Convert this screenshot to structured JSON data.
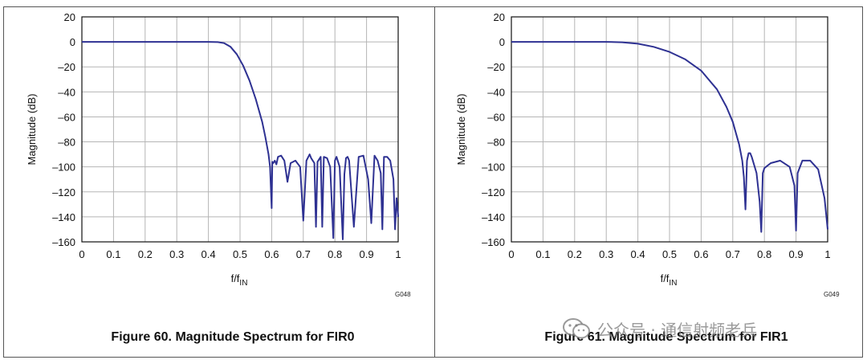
{
  "chart_data": [
    {
      "type": "line",
      "xlabel": "f/f",
      "xlabel_sub": "IN",
      "ylabel": "Magnitude (dB)",
      "xlim": [
        0,
        1
      ],
      "ylim": [
        -160,
        20
      ],
      "x_ticks": [
        "0",
        "0.1",
        "0.2",
        "0.3",
        "0.4",
        "0.5",
        "0.6",
        "0.7",
        "0.8",
        "0.9",
        "1"
      ],
      "y_ticks": [
        "20",
        "0",
        "–20",
        "–40",
        "–60",
        "–80",
        "–100",
        "–120",
        "–140",
        "–160"
      ],
      "grid": true,
      "line_color": "#2e3192",
      "series": [
        {
          "x": [
            0,
            0.4,
            0.43,
            0.45,
            0.47,
            0.49,
            0.51,
            0.53,
            0.55,
            0.57,
            0.58,
            0.59,
            0.595,
            0.6,
            0.602,
            0.605,
            0.61,
            0.615,
            0.62,
            0.63,
            0.64,
            0.65,
            0.66,
            0.675,
            0.69,
            0.7,
            0.71,
            0.72,
            0.725,
            0.735,
            0.74,
            0.745,
            0.755,
            0.76,
            0.765,
            0.775,
            0.785,
            0.795,
            0.8,
            0.805,
            0.815,
            0.825,
            0.83,
            0.835,
            0.84,
            0.845,
            0.86,
            0.875,
            0.89,
            0.905,
            0.915,
            0.925,
            0.935,
            0.945,
            0.95,
            0.955,
            0.965,
            0.975,
            0.985,
            0.99,
            0.995,
            1.0
          ],
          "y": [
            0,
            0,
            -0.2,
            -1,
            -4,
            -10,
            -19,
            -31,
            -46,
            -64,
            -76,
            -90,
            -100,
            -133,
            -96,
            -97,
            -95,
            -98,
            -92,
            -91,
            -95,
            -112,
            -97,
            -95,
            -100,
            -143,
            -95,
            -90,
            -93,
            -97,
            -148,
            -96,
            -92,
            -148,
            -92,
            -93,
            -100,
            -157,
            -95,
            -92,
            -100,
            -158,
            -106,
            -93,
            -92,
            -95,
            -148,
            -92,
            -91,
            -110,
            -145,
            -91,
            -95,
            -105,
            -150,
            -92,
            -92,
            -95,
            -110,
            -150,
            -125,
            -140
          ]
        }
      ],
      "code": "G048",
      "caption": "Figure 60. Magnitude Spectrum for FIR0"
    },
    {
      "type": "line",
      "xlabel": "f/f",
      "xlabel_sub": "IN",
      "ylabel": "Magnitude (dB)",
      "xlim": [
        0,
        1
      ],
      "ylim": [
        -160,
        20
      ],
      "x_ticks": [
        "0",
        "0.1",
        "0.2",
        "0.3",
        "0.4",
        "0.5",
        "0.6",
        "0.7",
        "0.8",
        "0.9",
        "1"
      ],
      "y_ticks": [
        "20",
        "0",
        "–20",
        "–40",
        "–60",
        "–80",
        "–100",
        "–120",
        "–140",
        "–160"
      ],
      "grid": true,
      "line_color": "#2e3192",
      "series": [
        {
          "x": [
            0,
            0.3,
            0.35,
            0.4,
            0.45,
            0.5,
            0.55,
            0.6,
            0.65,
            0.68,
            0.7,
            0.72,
            0.73,
            0.735,
            0.74,
            0.745,
            0.75,
            0.755,
            0.76,
            0.775,
            0.785,
            0.79,
            0.795,
            0.8,
            0.82,
            0.85,
            0.88,
            0.895,
            0.9,
            0.905,
            0.92,
            0.945,
            0.97,
            0.99,
            1.0
          ],
          "y": [
            0,
            0,
            -0.3,
            -1.5,
            -4,
            -8,
            -14,
            -23,
            -38,
            -52,
            -64,
            -82,
            -95,
            -108,
            -134,
            -95,
            -89,
            -89,
            -92,
            -105,
            -128,
            -152,
            -105,
            -101,
            -97,
            -95,
            -100,
            -115,
            -151,
            -105,
            -95,
            -95,
            -102,
            -125,
            -150
          ]
        }
      ],
      "code": "G049",
      "caption": "Figure 61. Magnitude Spectrum for FIR1"
    }
  ],
  "watermark": {
    "text": "公众号 · 通信射频老兵"
  }
}
